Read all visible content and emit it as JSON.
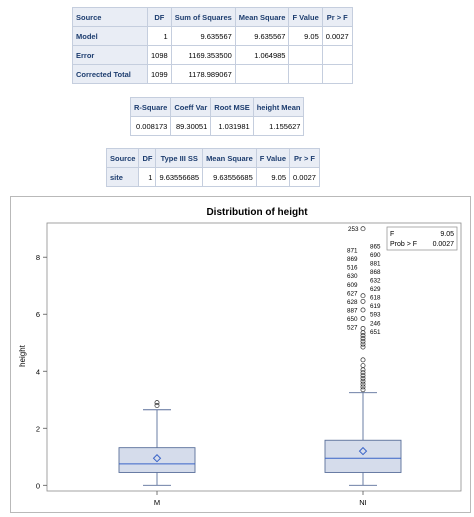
{
  "anova_table": {
    "headers": [
      "Source",
      "DF",
      "Sum of Squares",
      "Mean Square",
      "F Value",
      "Pr > F"
    ],
    "rows": [
      [
        "Model",
        "1",
        "9.635567",
        "9.635567",
        "9.05",
        "0.0027"
      ],
      [
        "Error",
        "1098",
        "1169.353500",
        "1.064985",
        "",
        ""
      ],
      [
        "Corrected Total",
        "1099",
        "1178.989067",
        "",
        "",
        ""
      ]
    ]
  },
  "fit_table": {
    "headers": [
      "R-Square",
      "Coeff Var",
      "Root MSE",
      "height Mean"
    ],
    "row": [
      "0.008173",
      "89.30051",
      "1.031981",
      "1.155627"
    ]
  },
  "type3_table": {
    "headers": [
      "Source",
      "DF",
      "Type III SS",
      "Mean Square",
      "F Value",
      "Pr > F"
    ],
    "row": [
      "site",
      "1",
      "9.63556685",
      "9.63556685",
      "9.05",
      "0.0027"
    ]
  },
  "chart_data": {
    "type": "box",
    "title": "Distribution of height",
    "xlabel": "",
    "ylabel": "height",
    "categories": [
      "M",
      "NI"
    ],
    "y_ticks": [
      "0",
      "2",
      "4",
      "6",
      "8"
    ],
    "ylim": [
      -0.2,
      9.2
    ],
    "boxes": [
      {
        "category": "M",
        "whisker_low": 0.0,
        "q1": 0.45,
        "median": 0.75,
        "mean": 0.95,
        "q3": 1.32,
        "whisker_high": 2.65,
        "outliers": [
          2.8,
          2.9
        ]
      },
      {
        "category": "NI",
        "whisker_low": 0.0,
        "q1": 0.45,
        "median": 0.95,
        "mean": 1.2,
        "q3": 1.58,
        "whisker_high": 3.25,
        "outliers": [
          3.35,
          3.45,
          3.55,
          3.65,
          3.75,
          3.85,
          3.95,
          4.05,
          4.2,
          4.4,
          4.85,
          4.95,
          5.05,
          5.15,
          5.25,
          5.35,
          5.5,
          5.85,
          6.15,
          6.45,
          6.65,
          9.0
        ]
      }
    ],
    "outlier_labels": [
      {
        "text": "253",
        "y": 9.0
      },
      {
        "text": "865",
        "y": 8.4
      },
      {
        "text": "871",
        "y": 8.25
      },
      {
        "text": "690",
        "y": 8.1
      },
      {
        "text": "869",
        "y": 7.95
      },
      {
        "text": "881",
        "y": 7.8
      },
      {
        "text": "516",
        "y": 7.65
      },
      {
        "text": "868",
        "y": 7.5
      },
      {
        "text": "630",
        "y": 7.35
      },
      {
        "text": "632",
        "y": 7.2
      },
      {
        "text": "609",
        "y": 7.05
      },
      {
        "text": "629",
        "y": 6.9
      },
      {
        "text": "627",
        "y": 6.75
      },
      {
        "text": "618",
        "y": 6.6
      },
      {
        "text": "628",
        "y": 6.45
      },
      {
        "text": "619",
        "y": 6.3
      },
      {
        "text": "887",
        "y": 6.15
      },
      {
        "text": "593",
        "y": 6.0
      },
      {
        "text": "650",
        "y": 5.85
      },
      {
        "text": "246",
        "y": 5.7
      },
      {
        "text": "527",
        "y": 5.55
      },
      {
        "text": "651",
        "y": 5.4
      }
    ],
    "inset": {
      "label_f": "F",
      "value_f": "9.05",
      "label_p": "Prob > F",
      "value_p": "0.0027"
    },
    "colors": {
      "box_fill": "#d5dceb",
      "box_stroke": "#5a6f9a",
      "mean_marker": "#3a64c8",
      "median": "#3a64c8",
      "outlier": "#303030"
    }
  }
}
